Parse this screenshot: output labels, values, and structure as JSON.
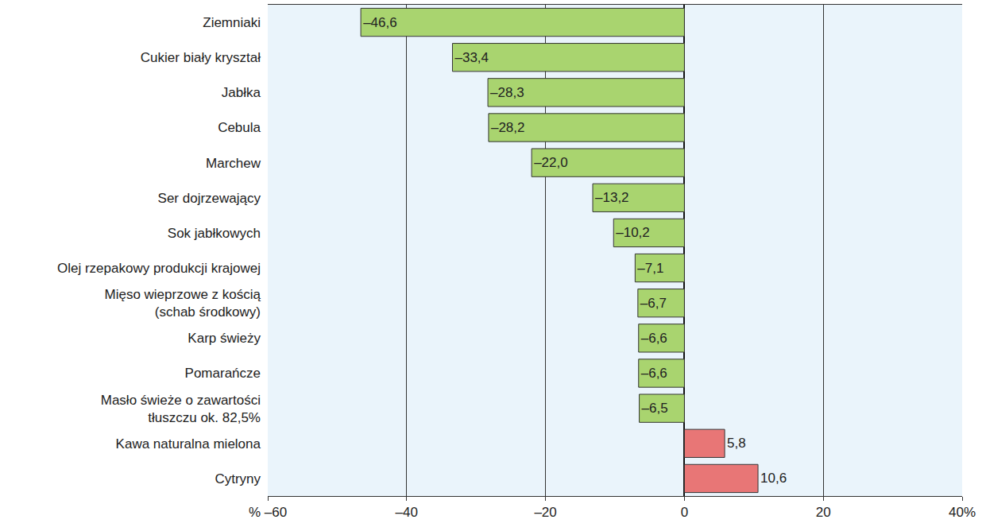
{
  "chart_data": {
    "type": "bar",
    "orientation": "horizontal",
    "categories": [
      "Ziemniaki",
      "Cukier biały kryształ",
      "Jabłka",
      "Cebula",
      "Marchew",
      "Ser dojrzewający",
      "Sok jabłkowych",
      "Olej rzepakowy produkcji krajowej",
      "Mięso wieprzowe z kością\n(schab środkowy)",
      "Karp świeży",
      "Pomarańcze",
      "Masło świeże o zawartości\ntłuszczu ok. 82,5%",
      "Kawa naturalna mielona",
      "Cytryny"
    ],
    "values": [
      -46.6,
      -33.4,
      -28.3,
      -28.2,
      -22.0,
      -13.2,
      -10.2,
      -7.1,
      -6.7,
      -6.6,
      -6.6,
      -6.5,
      5.8,
      10.6
    ],
    "value_labels": [
      "–46,6",
      "–33,4",
      "–28,3",
      "–28,2",
      "–22,0",
      "–13,2",
      "–10,2",
      "–7,1",
      "–6,7",
      "–6,6",
      "–6,6",
      "–6,5",
      "5,8",
      "10,6"
    ],
    "data_labels": true,
    "colors": [
      "#a9d46f",
      "#a9d46f",
      "#a9d46f",
      "#a9d46f",
      "#a9d46f",
      "#a9d46f",
      "#a9d46f",
      "#a9d46f",
      "#a9d46f",
      "#a9d46f",
      "#a9d46f",
      "#a9d46f",
      "#e87676",
      "#e87676"
    ],
    "xlim": [
      -60,
      40
    ],
    "xticks": [
      {
        "value": -60,
        "label": "% –60"
      },
      {
        "value": -40,
        "label": "–40"
      },
      {
        "value": -20,
        "label": "–20"
      },
      0,
      {
        "value": 20,
        "label": "20"
      },
      {
        "value": 40,
        "label": "40%"
      }
    ],
    "grid": true
  }
}
